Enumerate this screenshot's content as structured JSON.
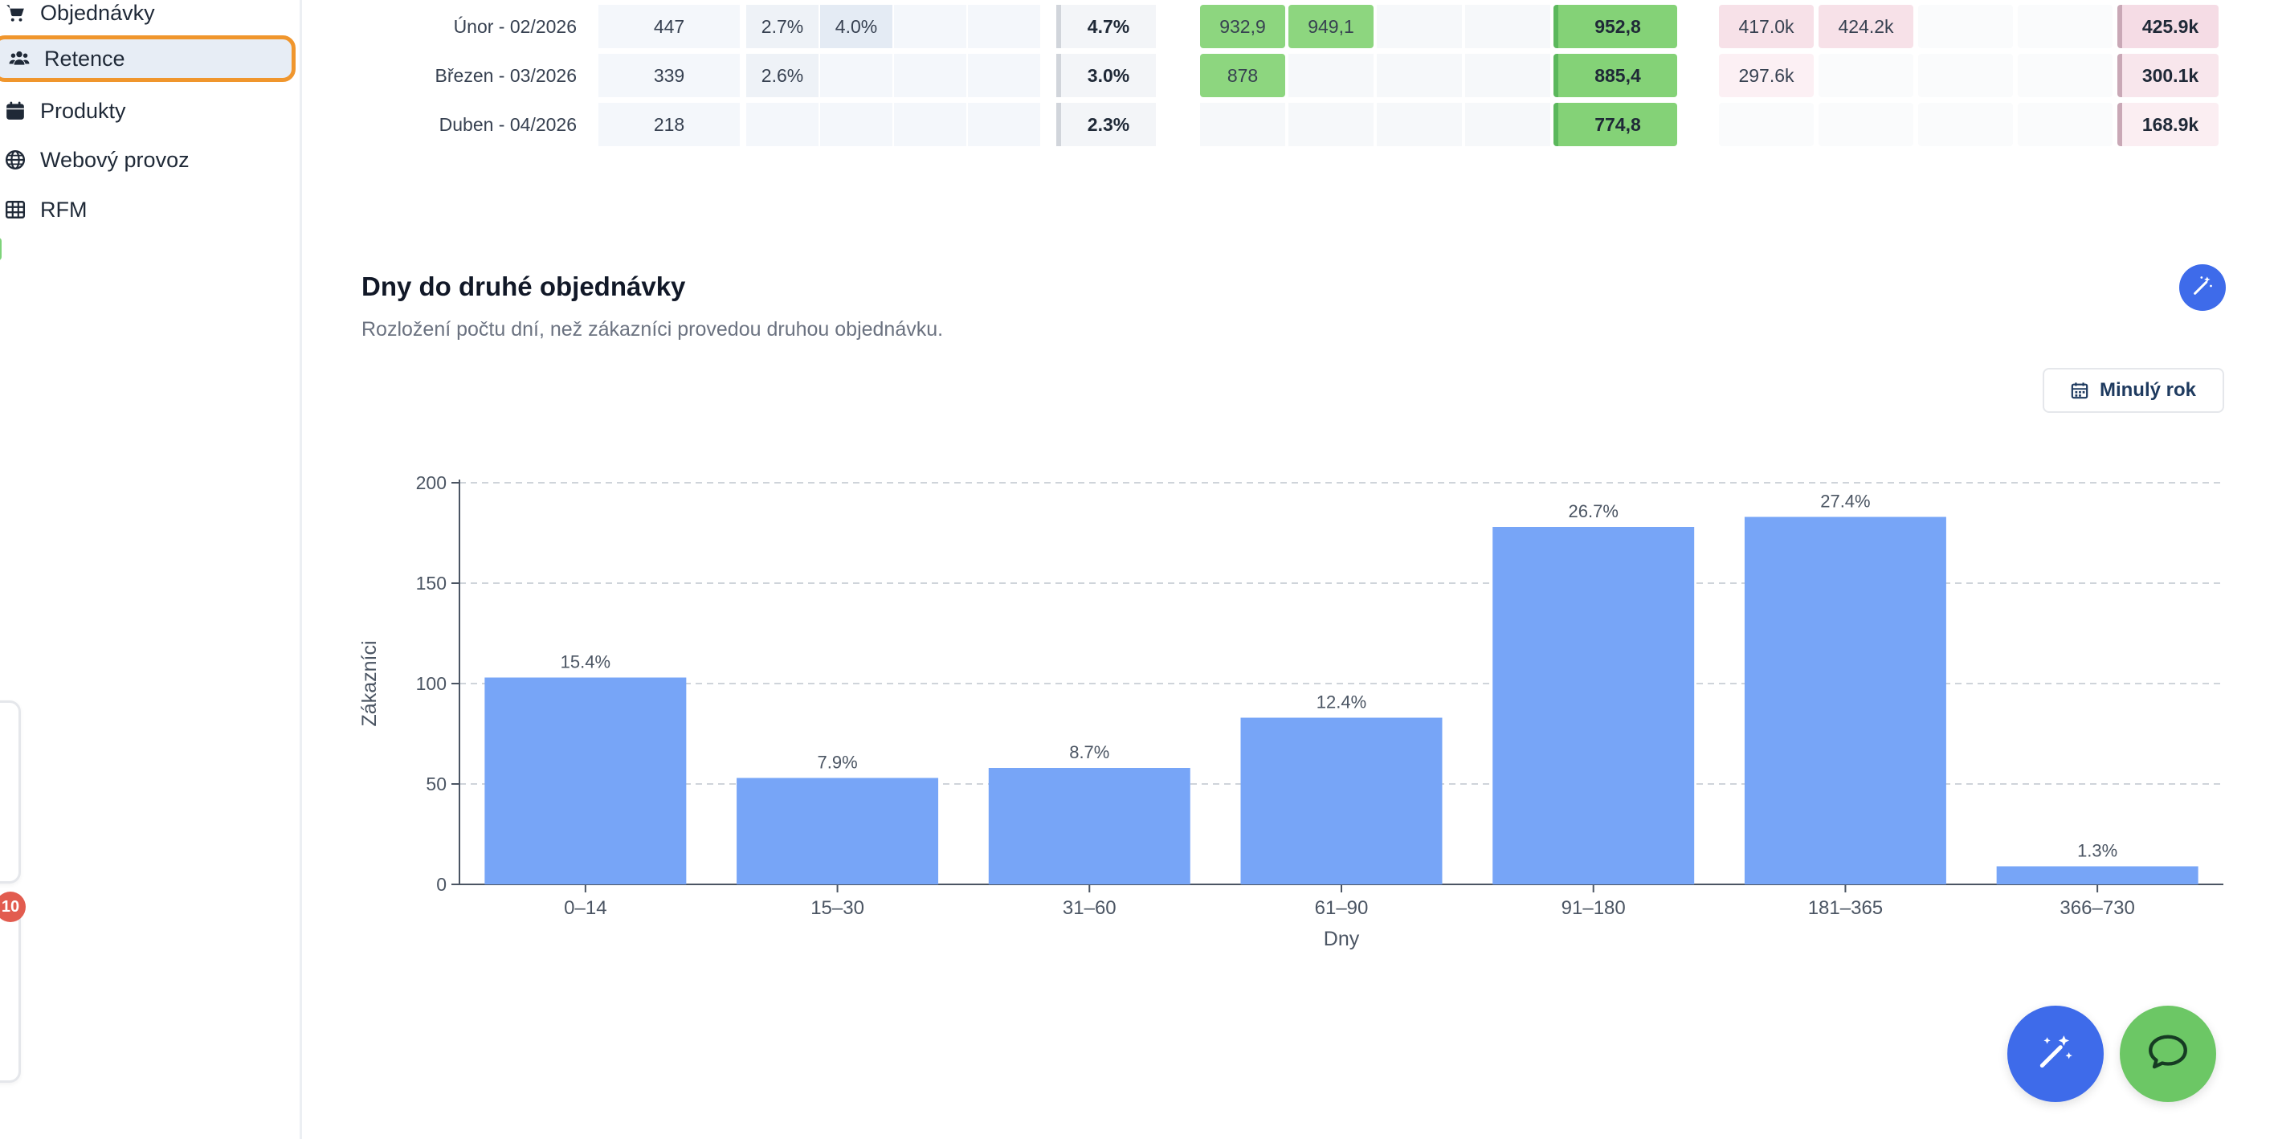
{
  "sidebar": {
    "items": [
      {
        "label": "Objednávky",
        "icon": "cart-icon"
      },
      {
        "label": "Retence",
        "icon": "users-icon",
        "active": true
      },
      {
        "label": "Produkty",
        "icon": "calendar-box-icon"
      },
      {
        "label": "Webový provoz",
        "icon": "globe-icon"
      },
      {
        "label": "RFM",
        "icon": "grid-icon"
      }
    ],
    "badge_count": "10"
  },
  "cohort_table": {
    "rows": [
      {
        "label": "Únor - 02/2026",
        "customers": "447",
        "pct": [
          "2.7%",
          "4.0%",
          "",
          ""
        ],
        "pct_total": "4.7%",
        "orders": [
          "932,9",
          "949,1",
          "",
          ""
        ],
        "orders_total": "952,8",
        "revenue": [
          "417.0k",
          "424.2k",
          "",
          ""
        ],
        "revenue_total": "425.9k"
      },
      {
        "label": "Březen - 03/2026",
        "customers": "339",
        "pct": [
          "2.6%",
          "",
          "",
          ""
        ],
        "pct_total": "3.0%",
        "orders": [
          "878",
          "",
          "",
          ""
        ],
        "orders_total": "885,4",
        "revenue": [
          "297.6k",
          "",
          "",
          ""
        ],
        "revenue_total": "300.1k"
      },
      {
        "label": "Duben - 04/2026",
        "customers": "218",
        "pct": [
          "",
          "",
          "",
          ""
        ],
        "pct_total": "2.3%",
        "orders": [
          "",
          "",
          "",
          ""
        ],
        "orders_total": "774,8",
        "revenue": [
          "",
          "",
          "",
          ""
        ],
        "revenue_total": "168.9k"
      }
    ]
  },
  "section": {
    "title": "Dny do druhé objednávky",
    "subtitle": "Rozložení počtu dní, než zákazníci provedou druhou objednávku.",
    "period_button": "Minulý rok"
  },
  "colors": {
    "bar": "#77a5f7",
    "accent_blue": "#3e6bea",
    "accent_green": "#6cc765",
    "active_outline": "#f0962d"
  },
  "chart_data": {
    "type": "bar",
    "title": "",
    "xlabel": "Dny",
    "ylabel": "Zákazníci",
    "categories": [
      "0–14",
      "15–30",
      "31–60",
      "61–90",
      "91–180",
      "181–365",
      "366–730"
    ],
    "values": [
      103,
      53,
      58,
      83,
      178,
      183,
      9
    ],
    "labels": [
      "15.4%",
      "7.9%",
      "8.7%",
      "12.4%",
      "26.7%",
      "27.4%",
      "1.3%"
    ],
    "ylim": [
      0,
      200
    ],
    "yticks": [
      0,
      50,
      100,
      150,
      200
    ],
    "grid": true
  }
}
